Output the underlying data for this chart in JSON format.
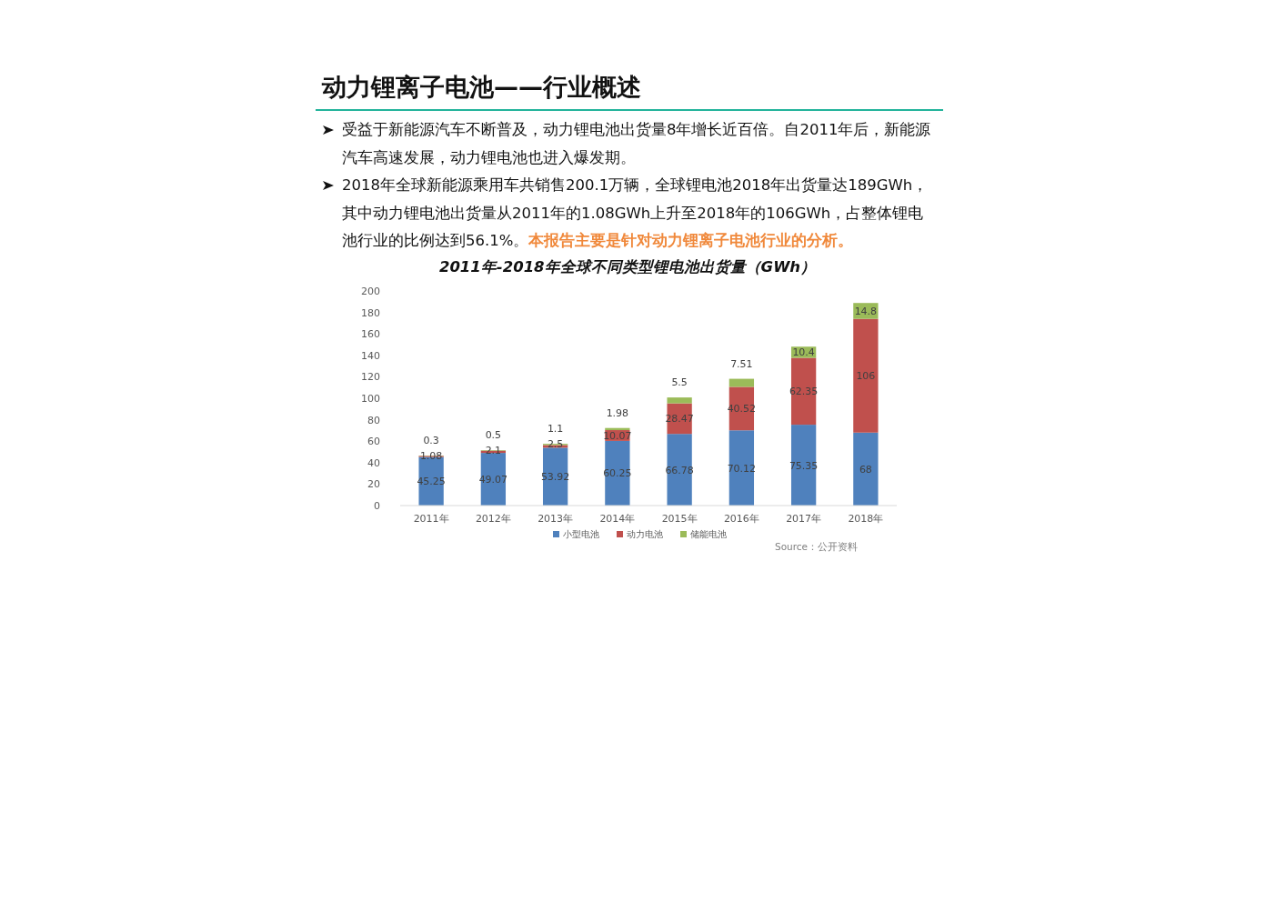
{
  "chart_data": {
    "type": "bar",
    "stacked": true,
    "data_labels": true,
    "legend": "bottom",
    "title": "2011年-2018年全球不同类型锂电池出货量（GWh）",
    "annotations": [
      "动力锂离子电池——行业概述",
      "受益于新能源汽车不断普及，动力锂电池出货量8年增长近百倍。自2011年后，新能源汽车高速发展，动力锂电池也进入爆发期。",
      "2018年全球新能源乘用车共销售200.1万辆，全球锂电池2018年出货量达189GWh，其中动力锂电池出货量从2011年的1.08GWh上升至2018年的106GWh，占整体锂电池行业的比例达到56.1%。",
      "本报告主要是针对动力锂离子电池行业的分析。",
      "Source：公开资料"
    ],
    "categories": [
      "2011年",
      "2012年",
      "2013年",
      "2014年",
      "2015年",
      "2016年",
      "2017年",
      "2018年"
    ],
    "ylim": [
      0,
      200
    ],
    "yticks": [
      0,
      20,
      40,
      60,
      80,
      100,
      120,
      140,
      160,
      180,
      200
    ],
    "series": [
      {
        "name": "小型电池",
        "color": "#4f81bd",
        "values": [
          45.25,
          49.07,
          53.92,
          60.25,
          66.78,
          70.12,
          75.35,
          68
        ]
      },
      {
        "name": "动力电池",
        "color": "#c0504d",
        "values": [
          1.08,
          2.1,
          2.5,
          10.07,
          28.47,
          40.52,
          62.35,
          106
        ]
      },
      {
        "name": "储能电池",
        "color": "#9bbb59",
        "values": [
          0.3,
          0.5,
          1.1,
          1.98,
          5.5,
          7.51,
          10.4,
          14.8
        ]
      }
    ]
  }
}
